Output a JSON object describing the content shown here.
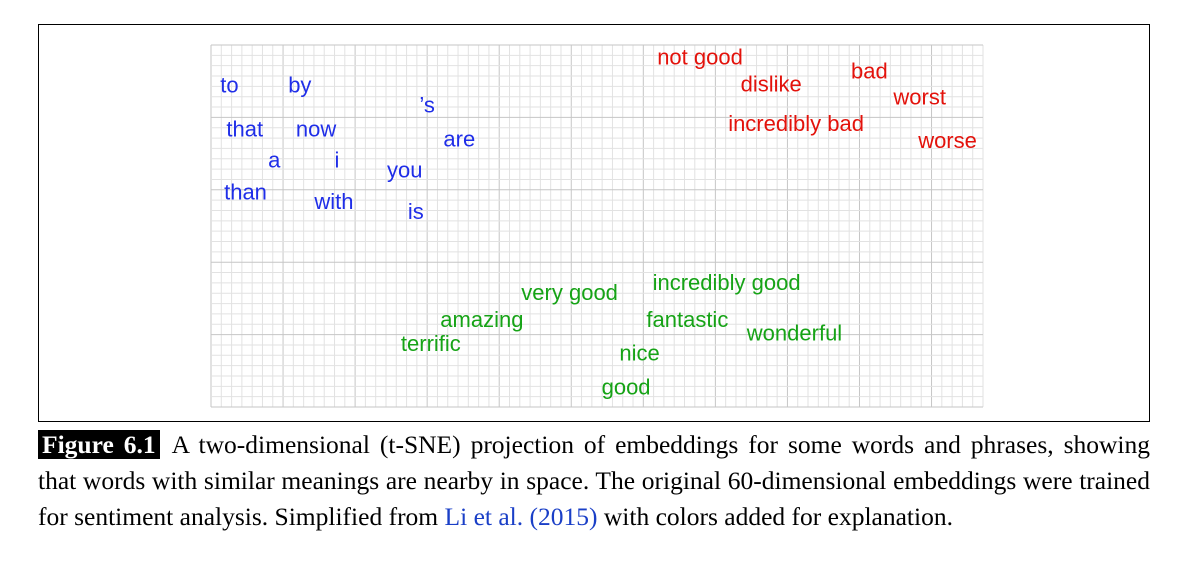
{
  "chart_data": {
    "type": "scatter",
    "title": "",
    "xlabel": "",
    "ylabel": "",
    "xlim": [
      0,
      100
    ],
    "ylim": [
      0,
      100
    ],
    "grid": true,
    "colors": {
      "function_words": "#1f2ee8",
      "negative": "#e3120b",
      "positive": "#16a316"
    },
    "series": [
      {
        "color": "#1f2ee8",
        "points": [
          {
            "label": "to",
            "x": 1.2,
            "y": 86.9
          },
          {
            "label": "by",
            "x": 10.0,
            "y": 86.9
          },
          {
            "label": "’s",
            "x": 27.0,
            "y": 81.3
          },
          {
            "label": "that",
            "x": 2.0,
            "y": 74.7
          },
          {
            "label": "now",
            "x": 11.0,
            "y": 74.7
          },
          {
            "label": "are",
            "x": 30.1,
            "y": 72.0
          },
          {
            "label": "a",
            "x": 7.4,
            "y": 66.1
          },
          {
            "label": "i",
            "x": 16.0,
            "y": 66.1
          },
          {
            "label": "you",
            "x": 22.8,
            "y": 63.4
          },
          {
            "label": "than",
            "x": 1.7,
            "y": 57.3
          },
          {
            "label": "with",
            "x": 13.4,
            "y": 54.7
          },
          {
            "label": "is",
            "x": 25.5,
            "y": 52.0
          }
        ]
      },
      {
        "color": "#e3120b",
        "points": [
          {
            "label": "not good",
            "x": 57.8,
            "y": 94.6
          },
          {
            "label": "bad",
            "x": 82.9,
            "y": 90.7
          },
          {
            "label": "dislike",
            "x": 68.6,
            "y": 87.2
          },
          {
            "label": "worst",
            "x": 88.4,
            "y": 83.5
          },
          {
            "label": "incredibly bad",
            "x": 67.0,
            "y": 76.3
          },
          {
            "label": "worse",
            "x": 91.6,
            "y": 71.6
          }
        ]
      },
      {
        "color": "#16a316",
        "points": [
          {
            "label": "incredibly good",
            "x": 57.2,
            "y": 32.3
          },
          {
            "label": "very good",
            "x": 40.2,
            "y": 29.6
          },
          {
            "label": "amazing",
            "x": 29.7,
            "y": 22.1
          },
          {
            "label": "fantastic",
            "x": 56.4,
            "y": 22.1
          },
          {
            "label": "wonderful",
            "x": 69.4,
            "y": 18.4
          },
          {
            "label": "terrific",
            "x": 24.6,
            "y": 15.5
          },
          {
            "label": "nice",
            "x": 52.9,
            "y": 12.9
          },
          {
            "label": "good",
            "x": 50.6,
            "y": 3.5
          }
        ]
      }
    ]
  },
  "caption": {
    "label": "Figure 6.1",
    "text": "A two-dimensional (t-SNE) projection of embeddings for some words and phrases, showing that words with similar meanings are nearby in space. The original 60-dimensional embeddings were trained for sentiment analysis. Simplified from ",
    "cite_author": "Li et al.",
    "cite_year": "(2015)",
    "text_end": " with colors added for explanation."
  }
}
